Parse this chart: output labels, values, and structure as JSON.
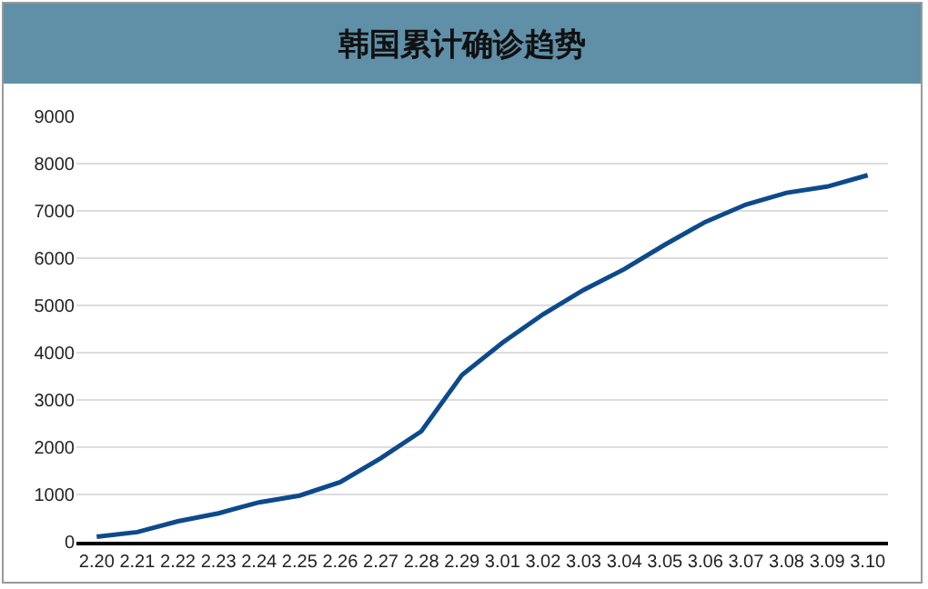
{
  "chart_data": {
    "type": "line",
    "title": "韩国累计确诊趋势",
    "categories": [
      "2.20",
      "2.21",
      "2.22",
      "2.23",
      "2.24",
      "2.25",
      "2.26",
      "2.27",
      "2.28",
      "2.29",
      "3.01",
      "3.02",
      "3.03",
      "3.04",
      "3.05",
      "3.06",
      "3.07",
      "3.08",
      "3.09",
      "3.10"
    ],
    "series": [
      {
        "color": "#0d4a8c",
        "values": [
          104,
          204,
          433,
          602,
          833,
          977,
          1261,
          1766,
          2337,
          3526,
          4212,
          4812,
          5328,
          5766,
          6284,
          6767,
          7134,
          7382,
          7513,
          7755
        ]
      }
    ],
    "ylim": [
      0,
      9000
    ],
    "yticks": [
      0,
      1000,
      2000,
      3000,
      4000,
      5000,
      6000,
      7000,
      8000,
      9000
    ],
    "grid": "y",
    "legend": false,
    "marker": "none",
    "line_style": "solid"
  }
}
